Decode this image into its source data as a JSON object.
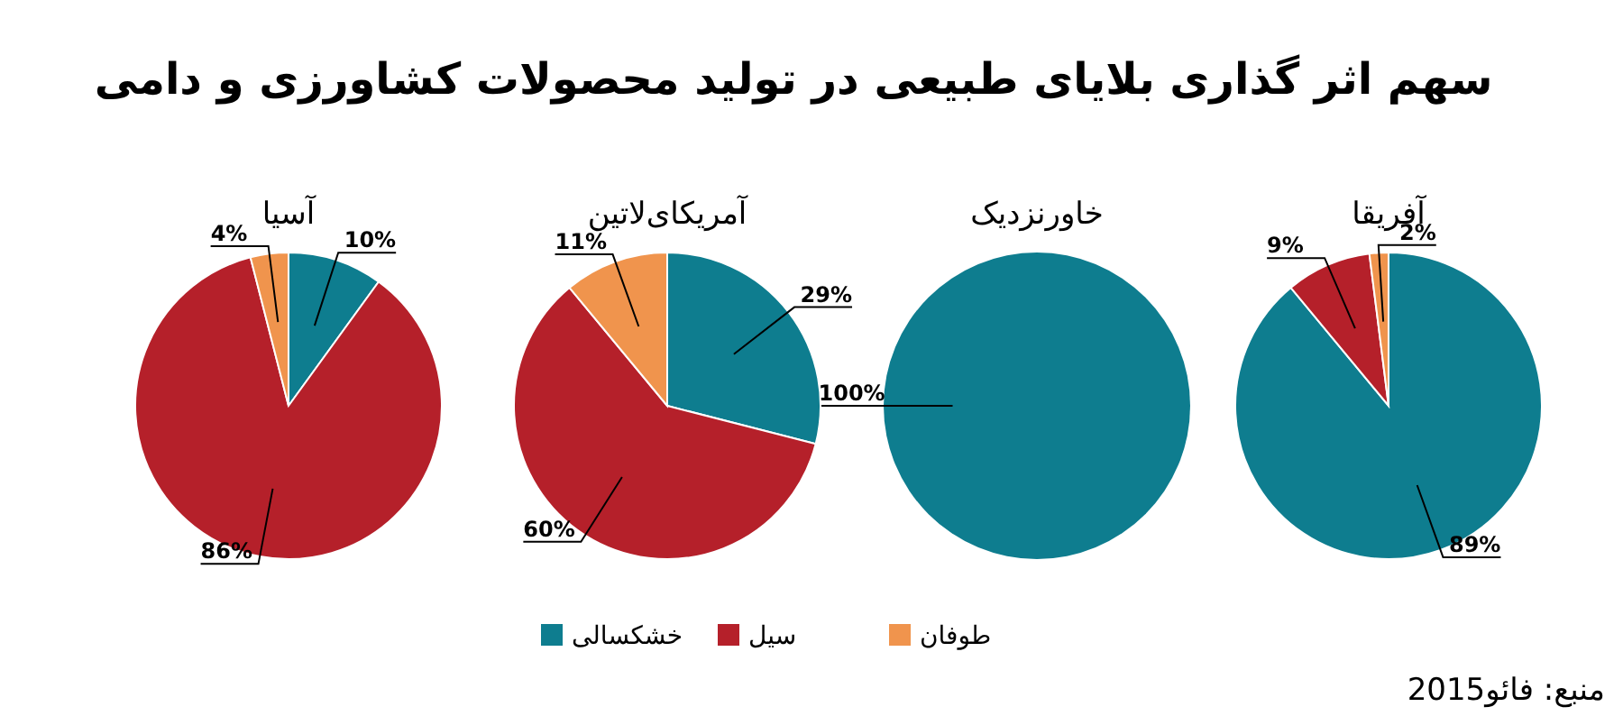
{
  "chart_data": [
    {
      "type": "other",
      "title": "سهم اثر گذاری بلایای طبیعی در تولید محصولات کشاورزی و دامی",
      "annotations": [
        "منبع: فائو2015"
      ]
    },
    {
      "type": "pie",
      "title": "آفریقا",
      "categories": [
        null,
        null,
        null
      ],
      "values": [
        89,
        9,
        2
      ],
      "colors": [
        "#0e7d8f",
        "#b5202a",
        "#f0944d"
      ],
      "value_labels": [
        "89%",
        "9%",
        "2%"
      ]
    },
    {
      "type": "pie",
      "title": "خاورنزدیک",
      "categories": [
        null
      ],
      "values": [
        100
      ],
      "colors": [
        "#0e7d8f"
      ],
      "value_labels": [
        "100%"
      ]
    },
    {
      "type": "pie",
      "title": "آمریکای‌لاتین",
      "categories": [
        "خشکسالی",
        "سیل",
        "طوفان"
      ],
      "values": [
        29,
        60,
        11
      ],
      "colors": [
        "#0e7d8f",
        "#b5202a",
        "#f0944d"
      ],
      "value_labels": [
        "29%",
        "60%",
        "11%"
      ],
      "legend": "bottom"
    },
    {
      "type": "pie",
      "title": "آسیا",
      "categories": [
        null,
        null,
        null
      ],
      "values": [
        10,
        86,
        4
      ],
      "colors": [
        "#0e7d8f",
        "#b5202a",
        "#f0944d"
      ],
      "value_labels": [
        "10%",
        "86%",
        "4%"
      ]
    }
  ]
}
